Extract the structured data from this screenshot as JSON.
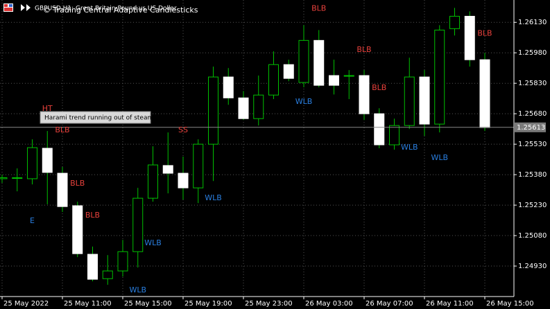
{
  "chart_data": {
    "type": "candlestick",
    "symbol_label": "GBPUSD,H1: Great Britain Pound vs US Dollar",
    "indicator_label": "© Trading Central Adaptive Candlesticks",
    "tooltip": "Harami trend running out of steam",
    "categories": [
      "25 May 2022",
      null,
      null,
      null,
      "25 May 11:00",
      null,
      null,
      null,
      "25 May 15:00",
      null,
      null,
      null,
      "25 May 19:00",
      null,
      null,
      null,
      "25 May 23:00",
      null,
      null,
      null,
      "26 May 03:00",
      null,
      null,
      null,
      "26 May 07:00",
      null,
      null,
      null,
      "26 May 11:00",
      null,
      null,
      null,
      "26 May 15:00"
    ],
    "open": [
      1.2536,
      1.25363,
      1.2536,
      1.2551,
      1.25387,
      1.25227,
      1.24988,
      1.24868,
      1.24906,
      1.25001,
      1.25264,
      1.25425,
      1.25387,
      1.25315,
      1.2553,
      1.25861,
      1.25758,
      1.25656,
      1.25772,
      1.25922,
      1.25834,
      1.26041,
      1.25868,
      1.25865,
      1.25868,
      1.2568,
      1.25527,
      1.25622,
      1.25861,
      1.25629,
      1.26099,
      1.2616,
      1.25946
    ],
    "high": [
      1.2538,
      1.25411,
      1.25554,
      1.25595,
      1.25418,
      1.25247,
      1.25026,
      1.24984,
      1.25059,
      1.25315,
      1.2552,
      1.25588,
      1.25469,
      1.25554,
      1.25912,
      1.25905,
      1.25792,
      1.25868,
      1.25987,
      1.25946,
      1.26116,
      1.26092,
      1.25946,
      1.25895,
      1.25895,
      1.25707,
      1.25656,
      1.25956,
      1.25895,
      1.26116,
      1.26201,
      1.26184,
      1.2598
    ],
    "low": [
      1.2534,
      1.25298,
      1.25332,
      1.25234,
      1.25196,
      1.24974,
      1.24855,
      1.24838,
      1.24878,
      1.24923,
      1.25247,
      1.25288,
      1.25257,
      1.2524,
      1.25349,
      1.25724,
      1.25649,
      1.25622,
      1.25752,
      1.2584,
      1.2581,
      1.2581,
      1.25775,
      1.25752,
      1.25649,
      1.2551,
      1.25503,
      1.25605,
      1.25571,
      1.25588,
      1.26065,
      1.25912,
      1.25595
    ],
    "close": [
      1.25365,
      1.25365,
      1.25513,
      1.25391,
      1.25223,
      1.24991,
      1.24865,
      1.24906,
      1.25001,
      1.25264,
      1.25428,
      1.25387,
      1.25315,
      1.2553,
      1.25861,
      1.25758,
      1.25656,
      1.25772,
      1.25922,
      1.25854,
      1.26041,
      1.2582,
      1.2582,
      1.25868,
      1.2568,
      1.25527,
      1.25622,
      1.25861,
      1.25629,
      1.26092,
      1.2616,
      1.25946,
      1.25612
    ],
    "bull_color": "#00c000",
    "bear_color": "#ffffff",
    "ylim": [
      1.2478,
      1.2624
    ],
    "yticks": [
      {
        "value": 1.2493,
        "label": "1.24930"
      },
      {
        "value": 1.2508,
        "label": "1.25080"
      },
      {
        "value": 1.2523,
        "label": "1.25230"
      },
      {
        "value": 1.2538,
        "label": "1.25380"
      },
      {
        "value": 1.2553,
        "label": "1.25530"
      },
      {
        "value": 1.2568,
        "label": "1.25680"
      },
      {
        "value": 1.2583,
        "label": "1.25830"
      },
      {
        "value": 1.2598,
        "label": "1.25980"
      },
      {
        "value": 1.2613,
        "label": "1.26130"
      }
    ],
    "grid": true,
    "current_price": 1.25613,
    "annotations": [
      {
        "text": "HT",
        "index": 3,
        "y": 1.25704,
        "color": "#e8413c"
      },
      {
        "text": "BLB",
        "index": 4,
        "y": 1.25598,
        "color": "#e8413c"
      },
      {
        "text": "BLB",
        "index": 5,
        "y": 1.25336,
        "color": "#e8413c"
      },
      {
        "text": "BLB",
        "index": 6,
        "y": 1.25179,
        "color": "#e8413c"
      },
      {
        "text": "E",
        "index": 2,
        "y": 1.25152,
        "color": "#2a7fe0"
      },
      {
        "text": "WLB",
        "index": 9,
        "y": 1.24811,
        "color": "#2a7fe0"
      },
      {
        "text": "WLB",
        "index": 10,
        "y": 1.25043,
        "color": "#2a7fe0"
      },
      {
        "text": "SS",
        "index": 12,
        "y": 1.25598,
        "color": "#e8413c"
      },
      {
        "text": "WLB",
        "index": 14,
        "y": 1.25264,
        "color": "#2a7fe0"
      },
      {
        "text": "WLB",
        "index": 20,
        "y": 1.25738,
        "color": "#2a7fe0"
      },
      {
        "text": "BLB",
        "index": 21,
        "y": 1.26198,
        "color": "#e8413c"
      },
      {
        "text": "BLB",
        "index": 24,
        "y": 1.25994,
        "color": "#e8413c"
      },
      {
        "text": "BLB",
        "index": 25,
        "y": 1.25806,
        "color": "#e8413c"
      },
      {
        "text": "WLB",
        "index": 27,
        "y": 1.25513,
        "color": "#2a7fe0"
      },
      {
        "text": "WLB",
        "index": 29,
        "y": 1.25462,
        "color": "#2a7fe0"
      },
      {
        "text": "BLB",
        "index": 32,
        "y": 1.26075,
        "color": "#e8413c"
      }
    ]
  }
}
